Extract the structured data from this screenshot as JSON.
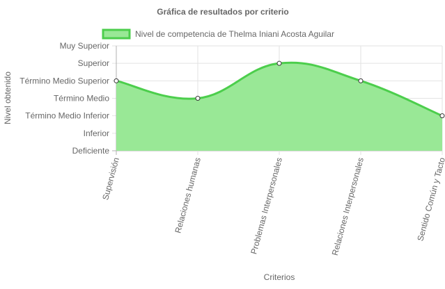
{
  "chart_data": {
    "type": "area",
    "title": "Gráfica de resultados por criterio",
    "xlabel": "Criterios",
    "ylabel": "Nivel obtenido",
    "categories": [
      "Supervisión",
      "Relaciones humanas",
      "Problemas Interpersonales",
      "Relaciones Interpersonales",
      "Sentido Común y Tacto"
    ],
    "y_levels": [
      "Deficiente",
      "Inferior",
      "Término Medio Inferior",
      "Término Medio",
      "Término Medio Superior",
      "Superior",
      "Muy Superior"
    ],
    "ylim": [
      0,
      6
    ],
    "series": [
      {
        "name": "Nivel de competencia de Thelma Iniani Acosta Aguilar",
        "values": [
          4,
          3,
          5,
          4,
          2
        ],
        "color": "#4cce4c",
        "fill": "#99e896"
      }
    ],
    "grid": true,
    "legend": "top"
  }
}
